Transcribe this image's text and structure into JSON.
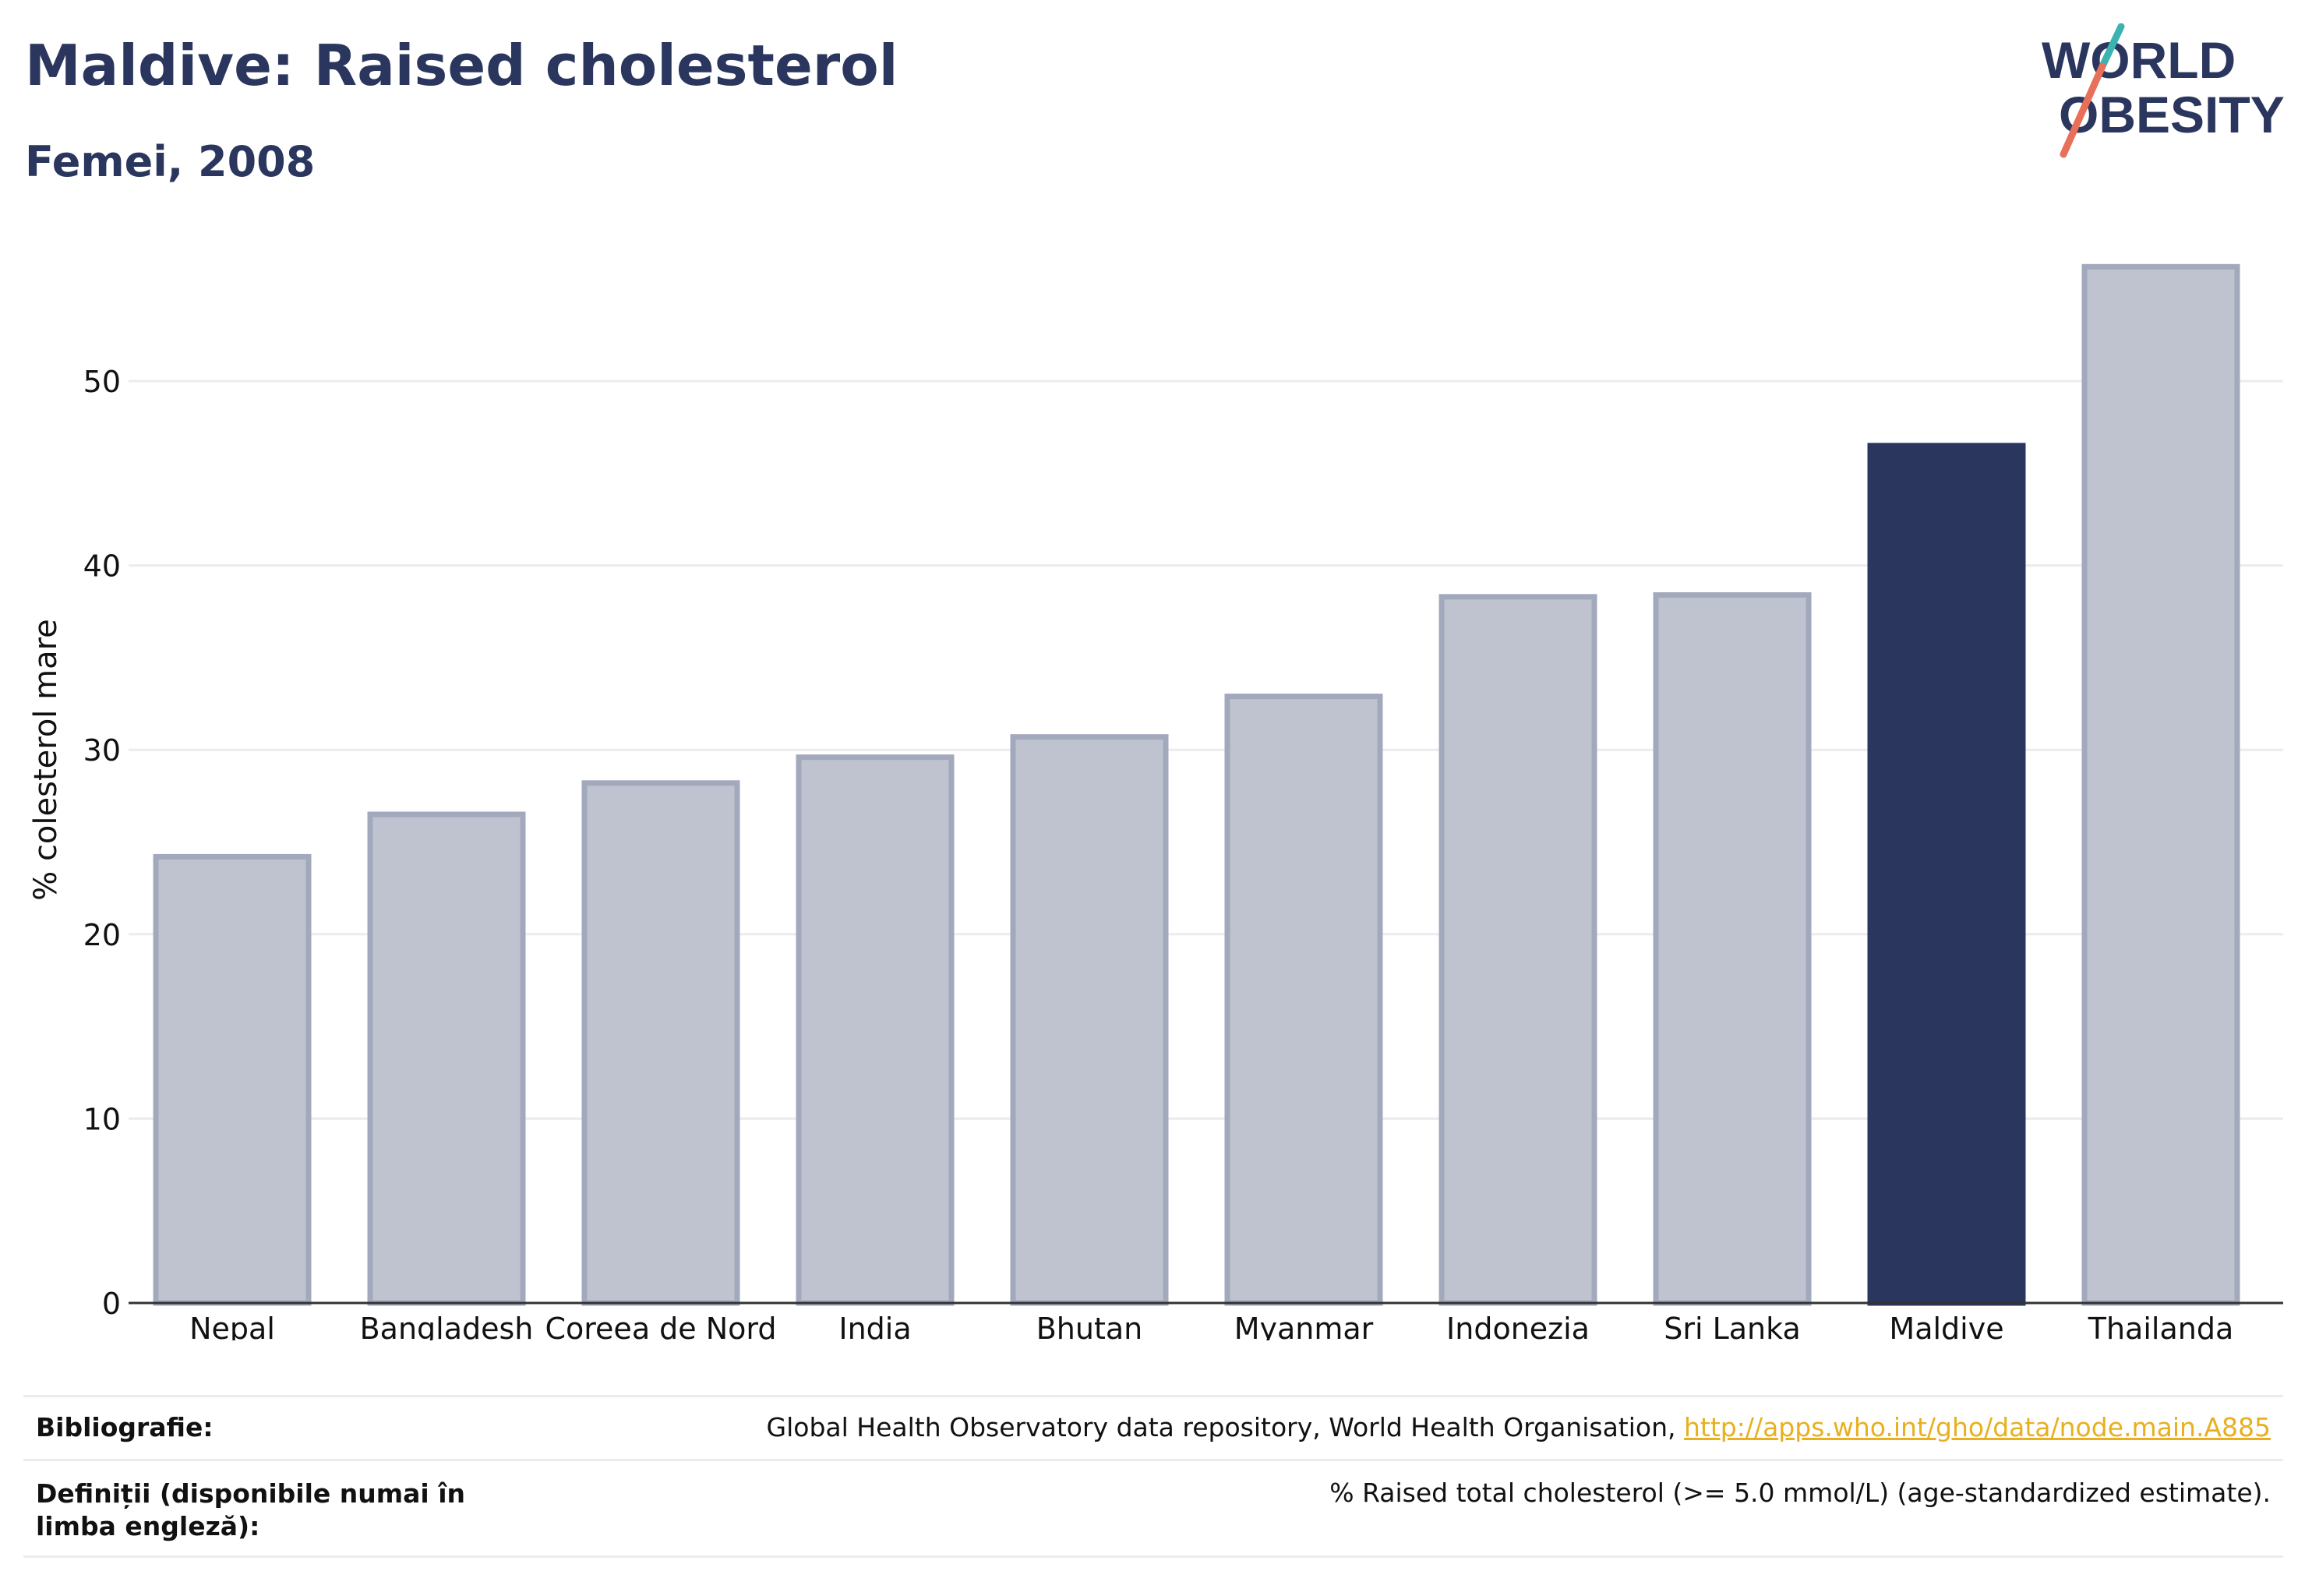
{
  "header": {
    "title": "Maldive: Raised cholesterol",
    "subtitle": "Femei, 2008"
  },
  "logo": {
    "line1": "WORLD",
    "line2": "OBESITY",
    "colors": {
      "navy": "#2a365e",
      "teal": "#3bb3b0",
      "coral": "#e8705a"
    }
  },
  "colors": {
    "highlight_bar": "#2a365e",
    "other_bar_fill": "#bfc3d0",
    "other_bar_stroke": "#a3a9bd",
    "grid": "#ececef",
    "axis": "#333333",
    "link": "#e8b01f"
  },
  "chart_data": {
    "type": "bar",
    "title": "Maldive: Raised cholesterol",
    "subtitle": "Femei, 2008",
    "xlabel": "",
    "ylabel": "% colesterol mare",
    "ylim": [
      0,
      58
    ],
    "yticks": [
      0,
      10,
      20,
      30,
      40,
      50
    ],
    "grid": true,
    "highlight": "Maldive",
    "categories": [
      "Nepal",
      "Bangladesh",
      "Coreea de Nord",
      "India",
      "Bhutan",
      "Myanmar",
      "Indonezia",
      "Sri Lanka",
      "Maldive",
      "Thailanda"
    ],
    "values": [
      24.2,
      26.5,
      28.2,
      29.6,
      30.7,
      32.9,
      38.3,
      38.4,
      46.5,
      56.2
    ]
  },
  "footer": {
    "bibliography_label": "Bibliografie:",
    "bibliography_text": "Global Health Observatory data repository, World Health Organisation, ",
    "bibliography_link": "http://apps.who.int/gho/data/node.main.A885",
    "definitions_label": "Definiții (disponibile numai în limba engleză):",
    "definitions_text": "% Raised total cholesterol (>= 5.0 mmol/L) (age-standardized estimate)."
  }
}
